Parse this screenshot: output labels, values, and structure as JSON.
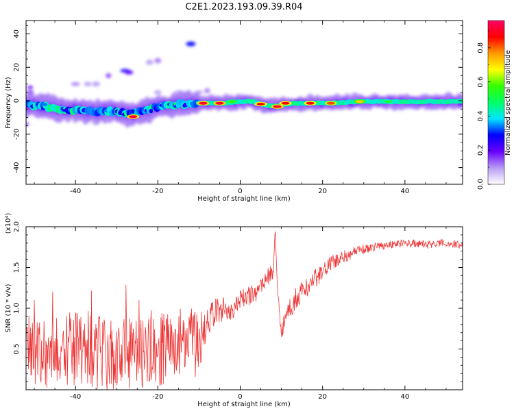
{
  "title": "C2E1.2023.193.09.39.R04",
  "chart_data": [
    {
      "type": "heatmap",
      "title": "",
      "xlabel": "Height of straight line (km)",
      "ylabel": "Frequency (Hz)",
      "xlim": [
        -52,
        54
      ],
      "ylim": [
        -50,
        48
      ],
      "xticks": [
        -40,
        -20,
        0,
        20,
        40
      ],
      "yticks": [
        -40,
        -20,
        0,
        20,
        40
      ],
      "grid": false,
      "ridge": [
        [
          -52,
          -2.5
        ],
        [
          -50,
          -3
        ],
        [
          -47,
          -3.5
        ],
        [
          -44,
          -5
        ],
        [
          -41,
          -5.5
        ],
        [
          -38,
          -6
        ],
        [
          -35,
          -6.5
        ],
        [
          -32,
          -6
        ],
        [
          -29,
          -7
        ],
        [
          -26,
          -8
        ],
        [
          -23,
          -6
        ],
        [
          -20,
          -4
        ],
        [
          -17,
          -3
        ],
        [
          -14,
          -2
        ],
        [
          -11,
          -1.5
        ],
        [
          -8,
          -1.5
        ],
        [
          -4,
          -1.5
        ],
        [
          0,
          -0.5
        ],
        [
          3,
          -0.5
        ],
        [
          5,
          -2
        ],
        [
          7,
          -3
        ],
        [
          9,
          -3.5
        ],
        [
          11,
          -2
        ],
        [
          14,
          -1.5
        ],
        [
          18,
          -1.5
        ],
        [
          22,
          -1.5
        ],
        [
          28,
          -0.5
        ],
        [
          35,
          -0.5
        ],
        [
          45,
          -0.5
        ],
        [
          54,
          -0.5
        ]
      ],
      "blobs": [
        {
          "x": -51,
          "y": 8,
          "a": 0.2
        },
        {
          "x": -51,
          "y": 5,
          "a": 0.15
        },
        {
          "x": -40,
          "y": 10,
          "a": 0.12
        },
        {
          "x": -37,
          "y": 10,
          "a": 0.1
        },
        {
          "x": -35,
          "y": 10,
          "a": 0.1
        },
        {
          "x": -32,
          "y": 15,
          "a": 0.15
        },
        {
          "x": -28,
          "y": 18,
          "a": 0.28
        },
        {
          "x": -27,
          "y": 17,
          "a": 0.22
        },
        {
          "x": -20,
          "y": 24,
          "a": 0.12
        },
        {
          "x": -22,
          "y": 23,
          "a": 0.1
        },
        {
          "x": -12,
          "y": 34,
          "a": 0.3
        },
        {
          "x": -20,
          "y": 5,
          "a": 0.1
        },
        {
          "x": -15,
          "y": 5,
          "a": 0.1
        },
        {
          "x": -10,
          "y": 5,
          "a": 0.1
        },
        {
          "x": -8,
          "y": 6,
          "a": 0.12
        },
        {
          "x": -52,
          "y": -14,
          "a": 0.15
        },
        {
          "x": -44,
          "y": -12,
          "a": 0.12
        },
        {
          "x": -35,
          "y": -13,
          "a": 0.1
        }
      ],
      "hotspots": [
        {
          "x": -26,
          "y": -9.5,
          "a": 0.95
        },
        {
          "x": -9,
          "y": -1.5,
          "a": 0.95
        },
        {
          "x": -5,
          "y": -1.5,
          "a": 0.95
        },
        {
          "x": 5,
          "y": -2,
          "a": 0.9
        },
        {
          "x": 9,
          "y": -3.5,
          "a": 0.95
        },
        {
          "x": 11,
          "y": -1.5,
          "a": 0.9
        },
        {
          "x": 17,
          "y": -1.5,
          "a": 0.9
        },
        {
          "x": 22,
          "y": -1.5,
          "a": 0.85
        },
        {
          "x": 29,
          "y": -0.5,
          "a": 0.75
        },
        {
          "x": -2,
          "y": -0.5,
          "a": 0.6
        },
        {
          "x": 36,
          "y": -0.5,
          "a": 0.55
        }
      ],
      "colorbar": {
        "label": "Normalized spectral amplitude",
        "range": [
          0,
          0.96
        ],
        "ticks": [
          0.0,
          0.2,
          0.4,
          0.6,
          0.8
        ],
        "stops": [
          "#ffffff",
          "#b79cf4",
          "#6a00ff",
          "#0000ff",
          "#00e5ff",
          "#00ff66",
          "#33ff00",
          "#ffff00",
          "#ff9900",
          "#ff0000",
          "#ff0066"
        ]
      }
    },
    {
      "type": "line",
      "title": "",
      "xlabel": "Height of straight line (km)",
      "ylabel": "SNR (10 * v/v)",
      "yunit": "(x10⁴)",
      "xlim": [
        -52,
        54
      ],
      "ylim": [
        0,
        2.0
      ],
      "xticks": [
        -40,
        -20,
        0,
        20,
        40
      ],
      "yticks": [
        0.5,
        1.0,
        1.5,
        2.0
      ],
      "grid": false,
      "color": "#ee3333",
      "x": [
        -52,
        -49,
        -46,
        -43,
        -40,
        -37,
        -34,
        -31,
        -28,
        -25,
        -22,
        -19,
        -16,
        -13,
        -10,
        -8,
        -6,
        -4,
        -2,
        0,
        2,
        4,
        6,
        8,
        8.5,
        9,
        10,
        12,
        14,
        16,
        18,
        20,
        22,
        24,
        26,
        28,
        30,
        33,
        36,
        40,
        45,
        50,
        54
      ],
      "y": [
        0.55,
        0.5,
        0.45,
        0.5,
        0.5,
        0.45,
        0.45,
        0.4,
        0.45,
        0.45,
        0.5,
        0.5,
        0.55,
        0.6,
        0.55,
        0.85,
        0.95,
        1.0,
        0.95,
        1.1,
        1.15,
        1.2,
        1.35,
        1.45,
        2.0,
        1.2,
        0.75,
        1.0,
        1.15,
        1.25,
        1.35,
        1.45,
        1.55,
        1.6,
        1.65,
        1.7,
        1.72,
        1.76,
        1.78,
        1.8,
        1.78,
        1.8,
        1.77
      ],
      "noise": [
        0.45,
        0.45,
        0.45,
        0.45,
        0.45,
        0.45,
        0.45,
        0.45,
        0.45,
        0.45,
        0.45,
        0.45,
        0.45,
        0.45,
        0.4,
        0.2,
        0.18,
        0.15,
        0.14,
        0.12,
        0.12,
        0.12,
        0.12,
        0.1,
        0.0,
        0.1,
        0.12,
        0.14,
        0.14,
        0.12,
        0.12,
        0.1,
        0.1,
        0.08,
        0.08,
        0.06,
        0.06,
        0.05,
        0.05,
        0.05,
        0.05,
        0.05,
        0.05
      ]
    }
  ]
}
